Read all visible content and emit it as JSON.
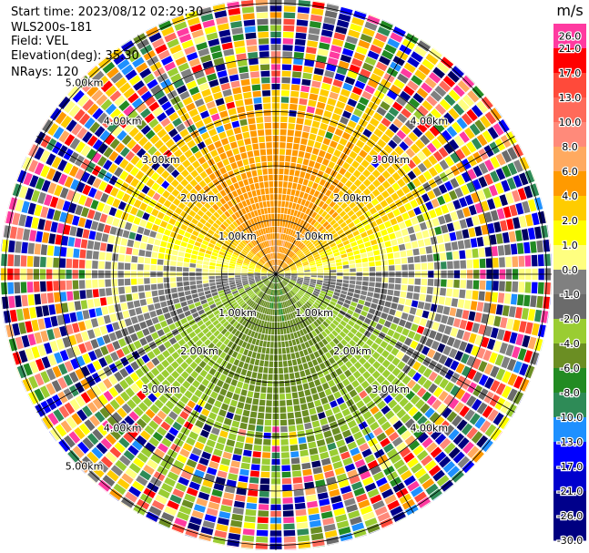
{
  "header": {
    "start_time": "Start time: 2023/08/12 02:29:30",
    "instrument": "WLS200s-181",
    "field": "Field: VEL",
    "elevation": "Elevation(deg): 35.30",
    "nrays": "NRays: 120"
  },
  "chart_data": {
    "type": "ppi",
    "field": "VEL",
    "units": "m/s",
    "elevation_deg": 35.3,
    "n_rays": 120,
    "range_rings_km": [
      1.0,
      2.0,
      3.0,
      4.0,
      5.0
    ],
    "ring_labels": {
      "nw": [
        "1.00km",
        "2.00km",
        "3.00km",
        "4.00km",
        "5.00km"
      ],
      "ne": [
        "1.00km",
        "2.00km",
        "3.00km",
        "4.00km"
      ],
      "sw": [
        "1.00km",
        "2.00km",
        "3.00km",
        "4.00km",
        "5.00km"
      ],
      "se": [
        "1.00km",
        "2.00km",
        "3.00km",
        "4.00km"
      ]
    },
    "colorbar": {
      "title": "m/s",
      "ticks": [
        "26.0",
        "21.0",
        "17.0",
        "13.0",
        "10.0",
        "8.0",
        "6.0",
        "4.0",
        "2.0",
        "1.0",
        "0.0",
        "-1.0",
        "-2.0",
        "-4.0",
        "-6.0",
        "-8.0",
        "-10.0",
        "-13.0",
        "-17.0",
        "-21.0",
        "-26.0",
        "-30.0"
      ],
      "colors": [
        "#ff3aa0",
        "#ff0000",
        "#ff4a3a",
        "#ff6a5a",
        "#ff8a7a",
        "#ffaa60",
        "#ff9a00",
        "#ffcc00",
        "#ffff00",
        "#ffff80",
        "#808080",
        "#6b6b6b",
        "#9acd32",
        "#6b8e23",
        "#228b22",
        "#2e8b57",
        "#1e90ff",
        "#0000ff",
        "#0000cd",
        "#00008b",
        "#000080",
        "#000060"
      ]
    },
    "pattern": {
      "receding_velocity_mps": 6.0,
      "receding_azimuth_center_deg": 0,
      "approaching_velocity_mps": -6.0,
      "clean_range_km": 3.6
    }
  }
}
